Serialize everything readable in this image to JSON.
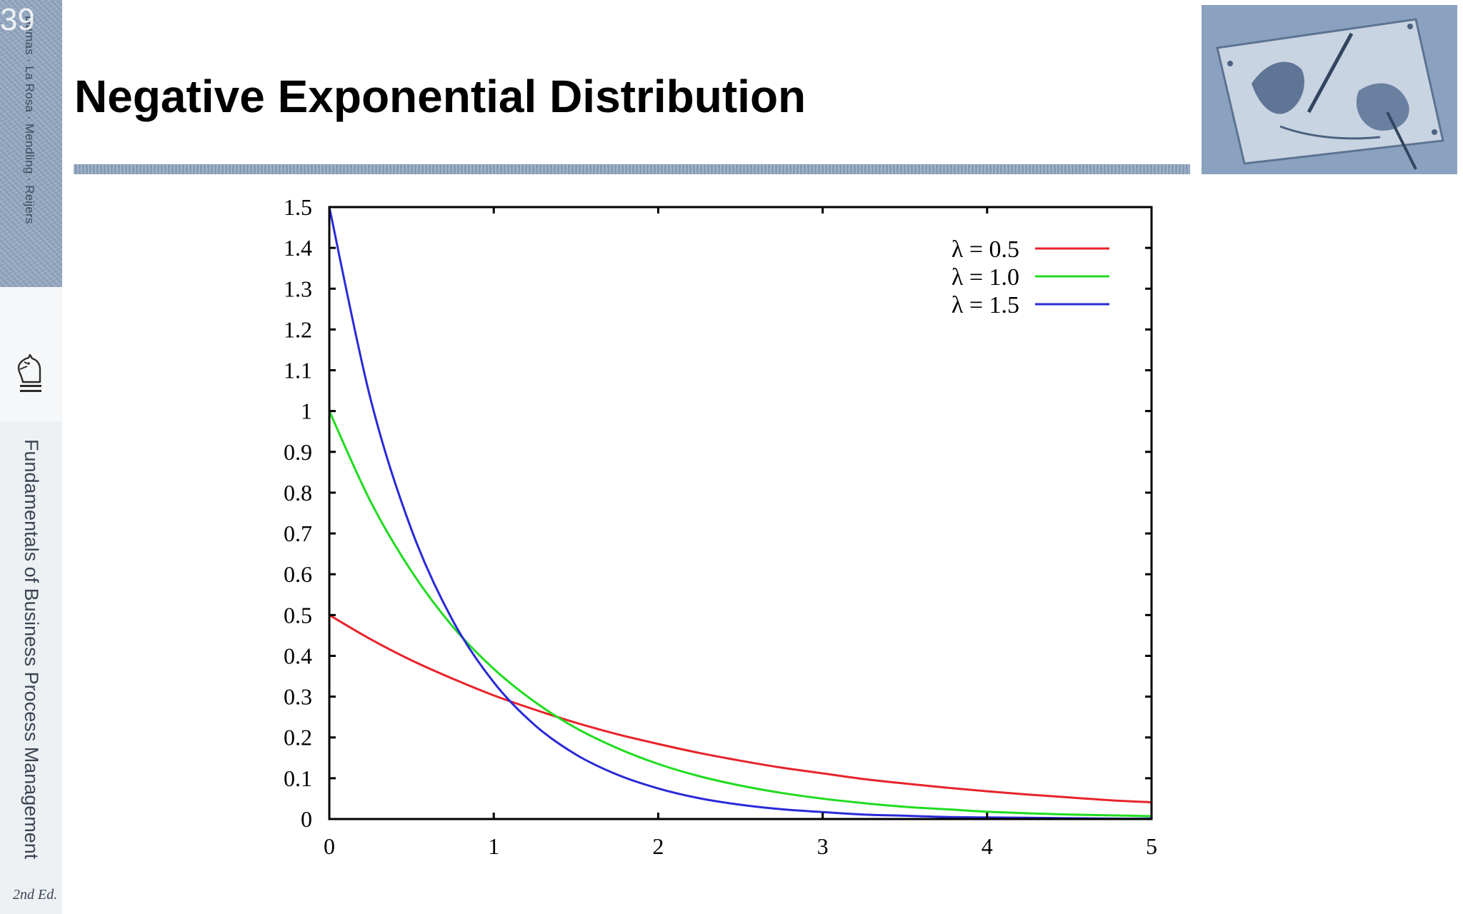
{
  "slide": {
    "number": "39",
    "title": "Negative Exponential Distribution"
  },
  "sidebar": {
    "authors": "Dumas · La Rosa · Mendling · Reijers",
    "book_title": "Fundamentals of Business Process Management",
    "edition": "2nd Ed.",
    "logo_icon": "chess-knight-icon"
  },
  "header_image": {
    "icon": "drawing-hands-image"
  },
  "colors": {
    "sidebar_blue": "#93a8c2",
    "rule_blue": "#8ea3bd",
    "series_red": "#e8232a",
    "series_green": "#1fdc1f",
    "series_blue": "#2a2ad8"
  },
  "chart_data": {
    "type": "line",
    "title": "",
    "xlabel": "",
    "ylabel": "",
    "xlim": [
      0,
      5
    ],
    "ylim": [
      0,
      1.5
    ],
    "x_ticks": [
      "0",
      "1",
      "2",
      "3",
      "4",
      "5"
    ],
    "y_ticks": [
      "0",
      "0.1",
      "0.2",
      "0.3",
      "0.4",
      "0.5",
      "0.6",
      "0.7",
      "0.8",
      "0.9",
      "1",
      "1.1",
      "1.2",
      "1.3",
      "1.4",
      "1.5"
    ],
    "grid": false,
    "legend_position": "top-right",
    "x": [
      0,
      0.25,
      0.5,
      0.75,
      1,
      1.25,
      1.5,
      1.75,
      2,
      2.25,
      2.5,
      2.75,
      3,
      3.25,
      3.5,
      3.75,
      4,
      4.25,
      4.5,
      4.75,
      5
    ],
    "series": [
      {
        "name": "λ = 0.5",
        "color": "#e8232a",
        "values": [
          0.5,
          0.441,
          0.389,
          0.344,
          0.303,
          0.268,
          0.236,
          0.208,
          0.184,
          0.162,
          0.143,
          0.126,
          0.112,
          0.098,
          0.087,
          0.077,
          0.068,
          0.06,
          0.053,
          0.046,
          0.041
        ]
      },
      {
        "name": "λ = 1.0",
        "color": "#1fdc1f",
        "values": [
          1,
          0.779,
          0.607,
          0.472,
          0.368,
          0.287,
          0.223,
          0.174,
          0.135,
          0.105,
          0.082,
          0.064,
          0.05,
          0.039,
          0.03,
          0.024,
          0.018,
          0.014,
          0.011,
          0.009,
          0.007
        ]
      },
      {
        "name": "λ = 1.5",
        "color": "#2a2ad8",
        "values": [
          1.5,
          1.031,
          0.709,
          0.487,
          0.335,
          0.23,
          0.158,
          0.109,
          0.075,
          0.051,
          0.035,
          0.024,
          0.017,
          0.011,
          0.008,
          0.005,
          0.004,
          0.003,
          0.002,
          0.001,
          0.001
        ]
      }
    ]
  }
}
